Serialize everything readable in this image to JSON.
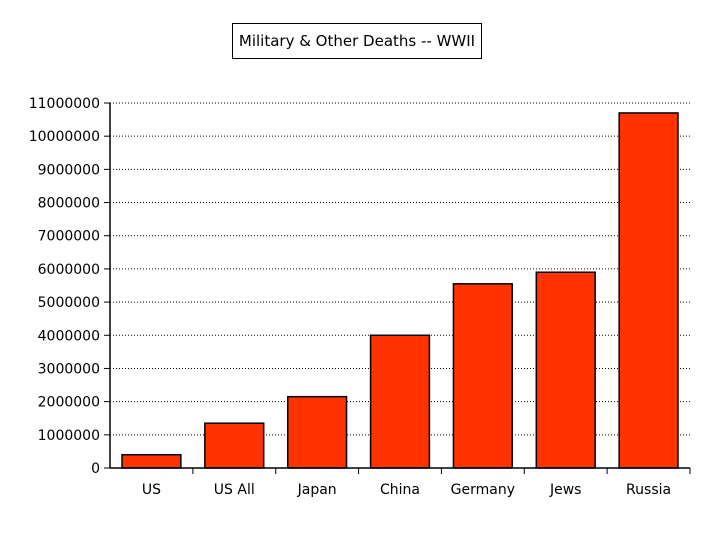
{
  "chart_data": {
    "type": "bar",
    "title": "Military & Other Deaths -- WWII",
    "xlabel": "",
    "ylabel": "",
    "categories": [
      "US",
      "US All",
      "Japan",
      "China",
      "Germany",
      "Jews",
      "Russia"
    ],
    "values": [
      400000,
      1350000,
      2150000,
      4000000,
      5550000,
      5900000,
      10700000
    ],
    "ylim": [
      0,
      11000000
    ],
    "yticks": [
      "0",
      "1000000",
      "2000000",
      "3000000",
      "4000000",
      "5000000",
      "6000000",
      "7000000",
      "8000000",
      "9000000",
      "10000000",
      "11000000"
    ],
    "grid": true,
    "bar_color": "#ff3300",
    "legend": "none"
  }
}
